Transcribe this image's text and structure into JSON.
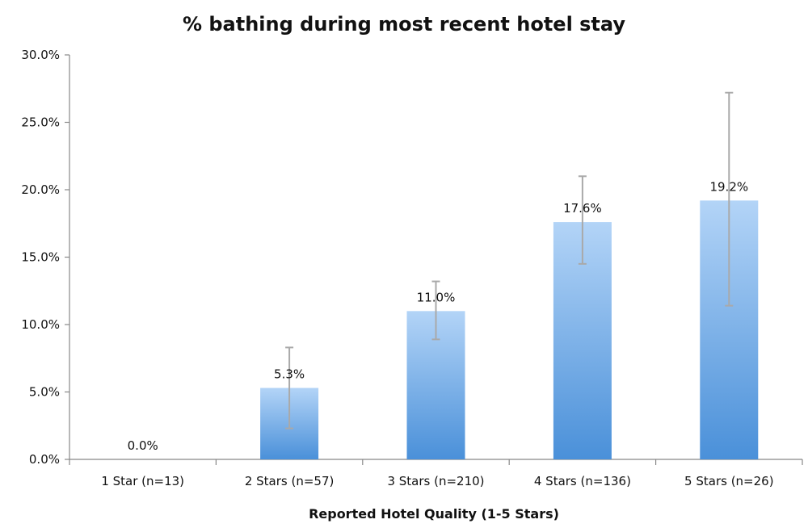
{
  "chart_data": {
    "type": "bar",
    "title": "% bathing during most recent hotel stay",
    "xlabel": "Reported Hotel Quality (1-5 Stars)",
    "ylabel": "",
    "categories": [
      "1 Star (n=13)",
      "2 Stars (n=57)",
      "3 Stars (n=210)",
      "4 Stars (n=136)",
      "5 Stars (n=26)"
    ],
    "values": [
      0.0,
      5.3,
      11.0,
      17.6,
      19.2
    ],
    "data_labels": [
      "0.0%",
      "5.3%",
      "11.0%",
      "17.6%",
      "19.2%"
    ],
    "error_bars": [
      {
        "low": 0.0,
        "high": 0.0
      },
      {
        "low": 2.3,
        "high": 8.3
      },
      {
        "low": 8.9,
        "high": 13.2
      },
      {
        "low": 14.5,
        "high": 21.0
      },
      {
        "low": 11.4,
        "high": 27.2
      }
    ],
    "ylim": [
      0,
      30
    ],
    "yticks": [
      0,
      5,
      10,
      15,
      20,
      25,
      30
    ],
    "ytick_labels": [
      "0.0%",
      "5.0%",
      "10.0%",
      "15.0%",
      "20.0%",
      "25.0%",
      "30.0%"
    ],
    "grid": false,
    "legend": "none",
    "colors": {
      "bar_top": "#b3d4f7",
      "bar_bottom": "#4a90d9",
      "error_bar": "#a9a9a9",
      "axis": "#888888"
    }
  }
}
